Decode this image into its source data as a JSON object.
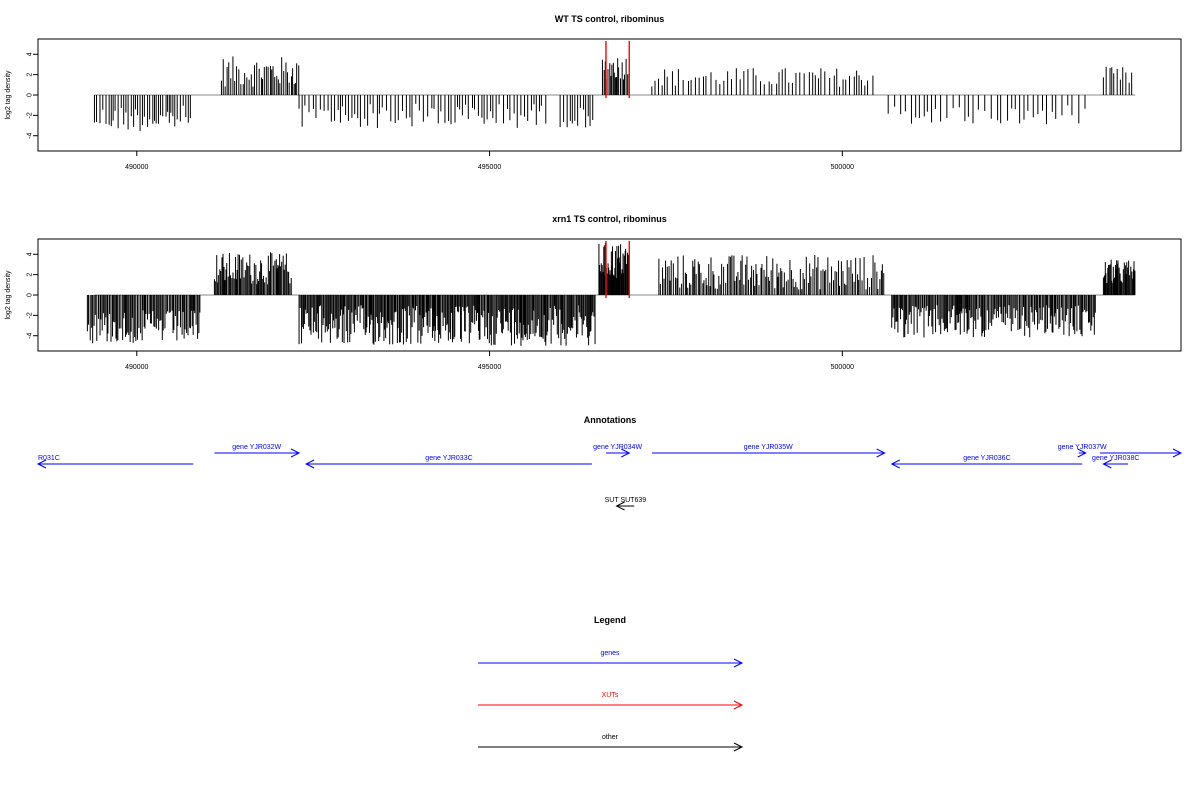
{
  "chart_data": [
    {
      "type": "bar",
      "title": "WT TS control, ribominus",
      "ylabel": "log2 tag density",
      "xlim": [
        488600,
        504800
      ],
      "ylim": [
        -5.5,
        5.5
      ],
      "xticks": [
        490000,
        495000,
        500000
      ],
      "xtick_labels": [
        "490000",
        "495000",
        "500000"
      ],
      "yticks": [
        -4,
        -2,
        0,
        2,
        4
      ],
      "ytick_labels": [
        "-4",
        "-2",
        "0",
        "2",
        "4"
      ],
      "grid": false,
      "segments": [
        {
          "from": 489400,
          "to": 490800,
          "min": 1.0,
          "max": 3.6,
          "sign": -1,
          "step": 35
        },
        {
          "from": 491200,
          "to": 492300,
          "min": 0.8,
          "max": 3.8,
          "sign": 1,
          "step": 25
        },
        {
          "from": 492300,
          "to": 495800,
          "min": 0.8,
          "max": 3.3,
          "sign": -1,
          "step": 45
        },
        {
          "from": 496000,
          "to": 496500,
          "min": 1.2,
          "max": 3.2,
          "sign": -1,
          "step": 40
        },
        {
          "from": 496600,
          "to": 496980,
          "min": 1.5,
          "max": 4.0,
          "sign": 1,
          "step": 20
        },
        {
          "from": 497300,
          "to": 500500,
          "min": 0.8,
          "max": 2.7,
          "sign": 1,
          "step": 55
        },
        {
          "from": 500650,
          "to": 503500,
          "min": 1.0,
          "max": 3.0,
          "sign": -1,
          "step": 70
        },
        {
          "from": 503700,
          "to": 504150,
          "min": 0.8,
          "max": 2.8,
          "sign": 1,
          "step": 40
        }
      ],
      "markers": [
        {
          "x": 496650,
          "color": "#ff0000"
        },
        {
          "x": 496980,
          "color": "#ff0000"
        }
      ]
    },
    {
      "type": "bar",
      "title": "xrn1 TS control, ribominus",
      "ylabel": "log2 tag density",
      "xlim": [
        488600,
        504800
      ],
      "ylim": [
        -5.5,
        5.5
      ],
      "xticks": [
        490000,
        495000,
        500000
      ],
      "xtick_labels": [
        "490000",
        "495000",
        "500000"
      ],
      "yticks": [
        -4,
        -2,
        0,
        2,
        4
      ],
      "ytick_labels": [
        "-4",
        "-2",
        "0",
        "2",
        "4"
      ],
      "grid": false,
      "segments": [
        {
          "from": 489300,
          "to": 490900,
          "min": 1.5,
          "max": 4.8,
          "sign": -1,
          "step": 18
        },
        {
          "from": 491100,
          "to": 492200,
          "min": 1.0,
          "max": 4.2,
          "sign": 1,
          "step": 16
        },
        {
          "from": 492300,
          "to": 496500,
          "min": 1.0,
          "max": 5.0,
          "sign": -1,
          "step": 15
        },
        {
          "from": 496550,
          "to": 496980,
          "min": 1.5,
          "max": 5.2,
          "sign": 1,
          "step": 10
        },
        {
          "from": 497400,
          "to": 500600,
          "min": 0.5,
          "max": 4.0,
          "sign": 1,
          "step": 22
        },
        {
          "from": 500700,
          "to": 503600,
          "min": 1.0,
          "max": 4.2,
          "sign": -1,
          "step": 16
        },
        {
          "from": 503700,
          "to": 504150,
          "min": 1.0,
          "max": 3.5,
          "sign": 1,
          "step": 12
        }
      ],
      "markers": [
        {
          "x": 496650,
          "color": "#ff0000"
        },
        {
          "x": 496980,
          "color": "#ff0000"
        }
      ]
    }
  ],
  "annotations": {
    "title": "Annotations",
    "items": [
      {
        "label": "R031C",
        "from": 490800,
        "to": 488600,
        "strand": "-",
        "row": 2,
        "color": "#0000ff",
        "label_anchor": "start"
      },
      {
        "label": "gene YJR032W",
        "from": 491100,
        "to": 492300,
        "strand": "+",
        "row": 1,
        "color": "#0000ff"
      },
      {
        "label": "gene YJR033C",
        "from": 496450,
        "to": 492400,
        "strand": "-",
        "row": 2,
        "color": "#0000ff"
      },
      {
        "label": "gene YJR034W",
        "from": 496650,
        "to": 496980,
        "strand": "+",
        "row": 1,
        "color": "#0000ff"
      },
      {
        "label": "gene YJR035W",
        "from": 497300,
        "to": 500600,
        "strand": "+",
        "row": 1,
        "color": "#0000ff"
      },
      {
        "label": "gene YJR036C",
        "from": 503400,
        "to": 500700,
        "strand": "-",
        "row": 2,
        "color": "#0000ff"
      },
      {
        "label": "gene YJR037W",
        "from": 503350,
        "to": 503450,
        "strand": "+",
        "row": 1,
        "color": "#0000ff"
      },
      {
        "label": "gene YJR038C",
        "from": 504050,
        "to": 503700,
        "strand": "-",
        "row": 2,
        "color": "#0000ff"
      },
      {
        "label": "",
        "from": 503650,
        "to": 504800,
        "strand": "+",
        "row": 1,
        "color": "#0000ff"
      },
      {
        "label": "SUT SUT639",
        "from": 497050,
        "to": 496800,
        "strand": "-",
        "row": 3,
        "color": "#000000"
      }
    ]
  },
  "legend": {
    "title": "Legend",
    "items": [
      {
        "label": "genes",
        "color": "#0000ff"
      },
      {
        "label": "XUTs",
        "color": "#ff0000"
      },
      {
        "label": "other",
        "color": "#000000"
      }
    ]
  }
}
